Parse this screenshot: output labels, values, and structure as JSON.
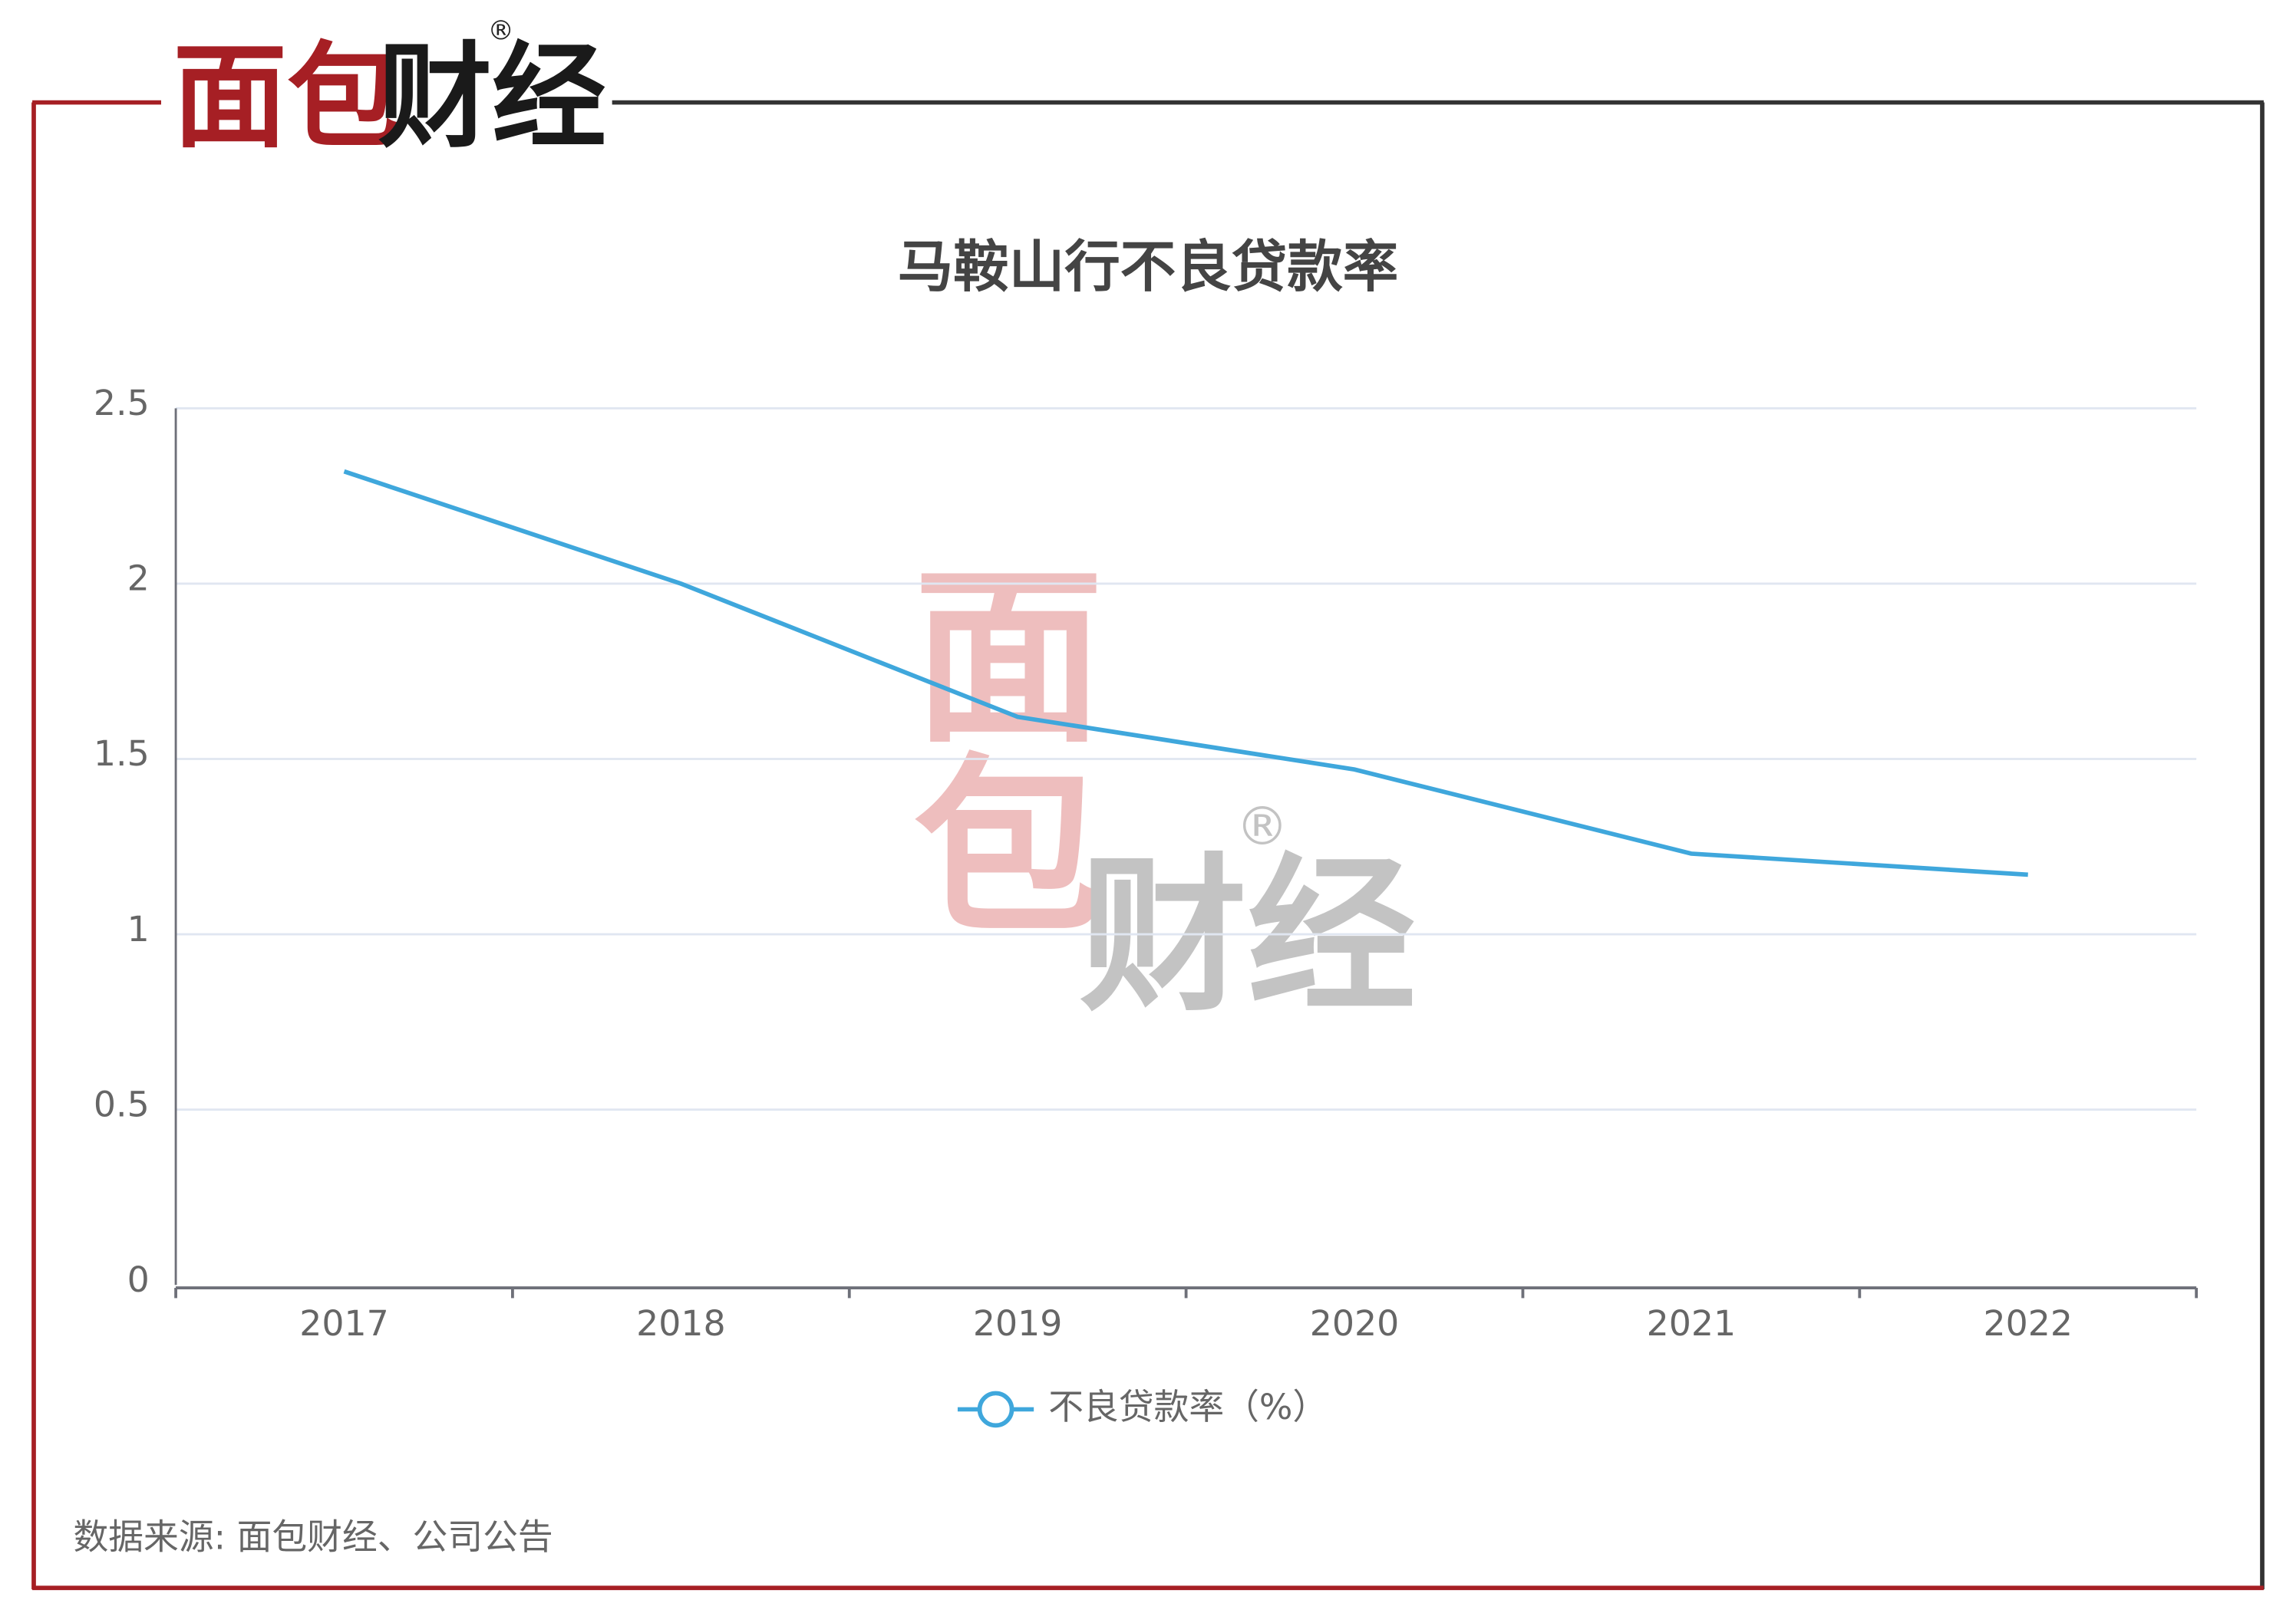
{
  "brand": [
    "面包",
    "财经"
  ],
  "registered": "®",
  "chart_data": {
    "type": "line",
    "title": "马鞍山行不良贷款率",
    "categories": [
      "2017",
      "2018",
      "2019",
      "2020",
      "2021",
      "2022"
    ],
    "series": [
      {
        "name": "不良贷款率（%）",
        "color": "#3fa7dc",
        "values": [
          2.32,
          2.0,
          1.62,
          1.47,
          1.23,
          1.17
        ]
      }
    ],
    "ylim": [
      0,
      2.5
    ],
    "yticks": [
      0,
      0.5,
      1,
      1.5,
      2,
      2.5
    ],
    "grid": true,
    "legend": "bottom"
  },
  "source": "数据来源: 面包财经、公司公告"
}
